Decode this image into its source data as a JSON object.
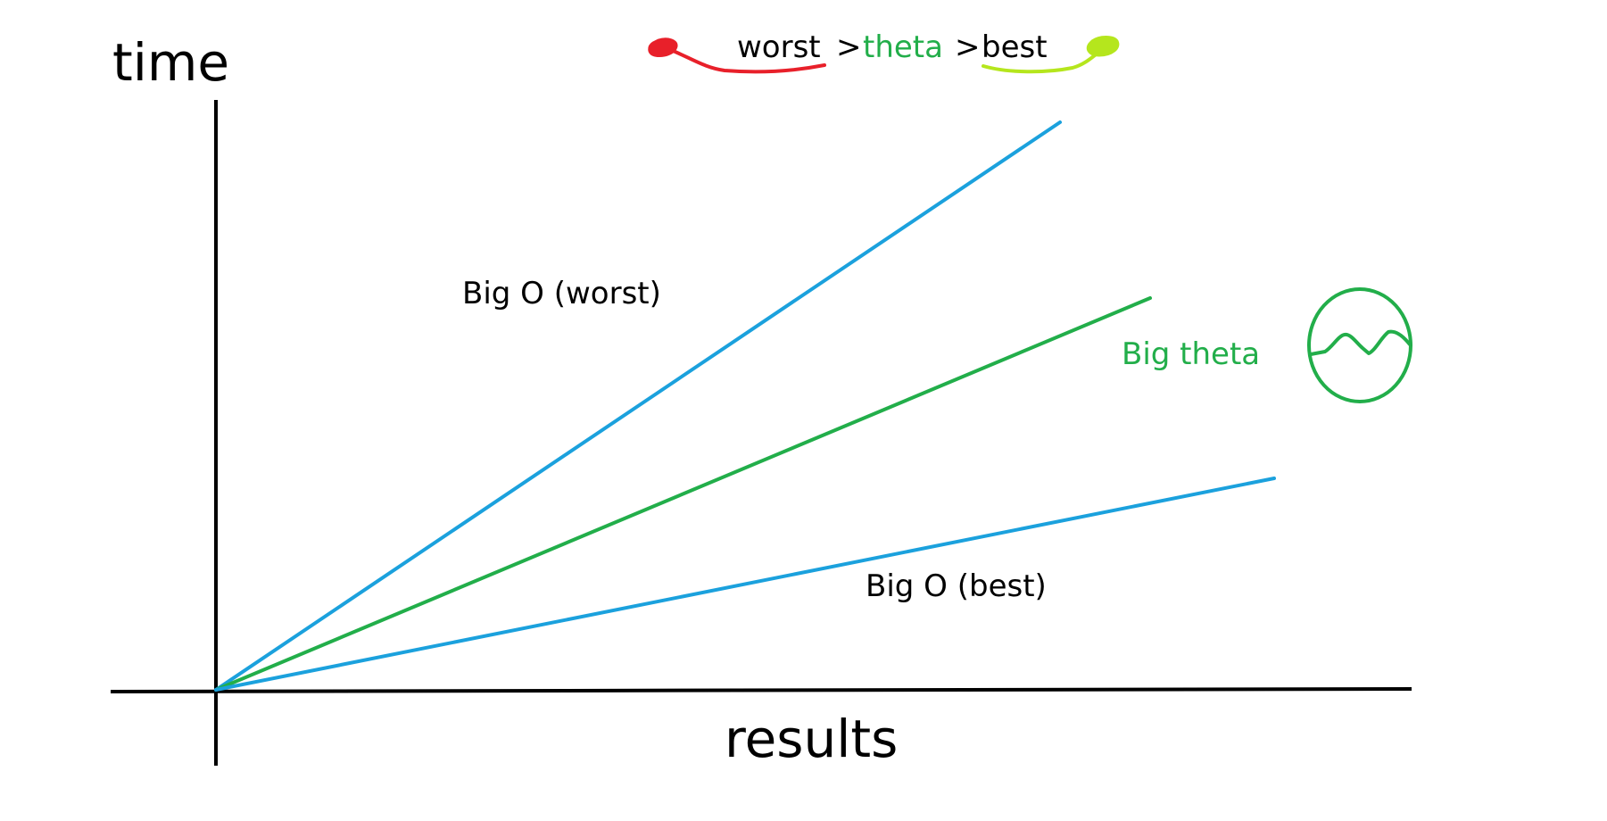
{
  "axes": {
    "y_label": "time",
    "x_label": "results"
  },
  "legend": {
    "worst": "worst",
    "sep1": ">",
    "theta": "theta",
    "sep2": ">",
    "best": "best"
  },
  "labels": {
    "big_o_worst": "Big O (worst)",
    "big_theta": "Big theta",
    "big_o_best": "Big O (best)"
  },
  "colors": {
    "axis": "#000000",
    "bound_line": "#1ba1dd",
    "theta_line": "#22ae4a",
    "worst_marker": "#e8202a",
    "best_marker": "#b5e61d",
    "theta_text": "#22ae4a",
    "text": "#000000"
  },
  "icons": {
    "theta_symbol": "theta-wave-circle-icon",
    "worst_marker": "red-scribble-icon",
    "best_marker": "green-scribble-icon"
  }
}
